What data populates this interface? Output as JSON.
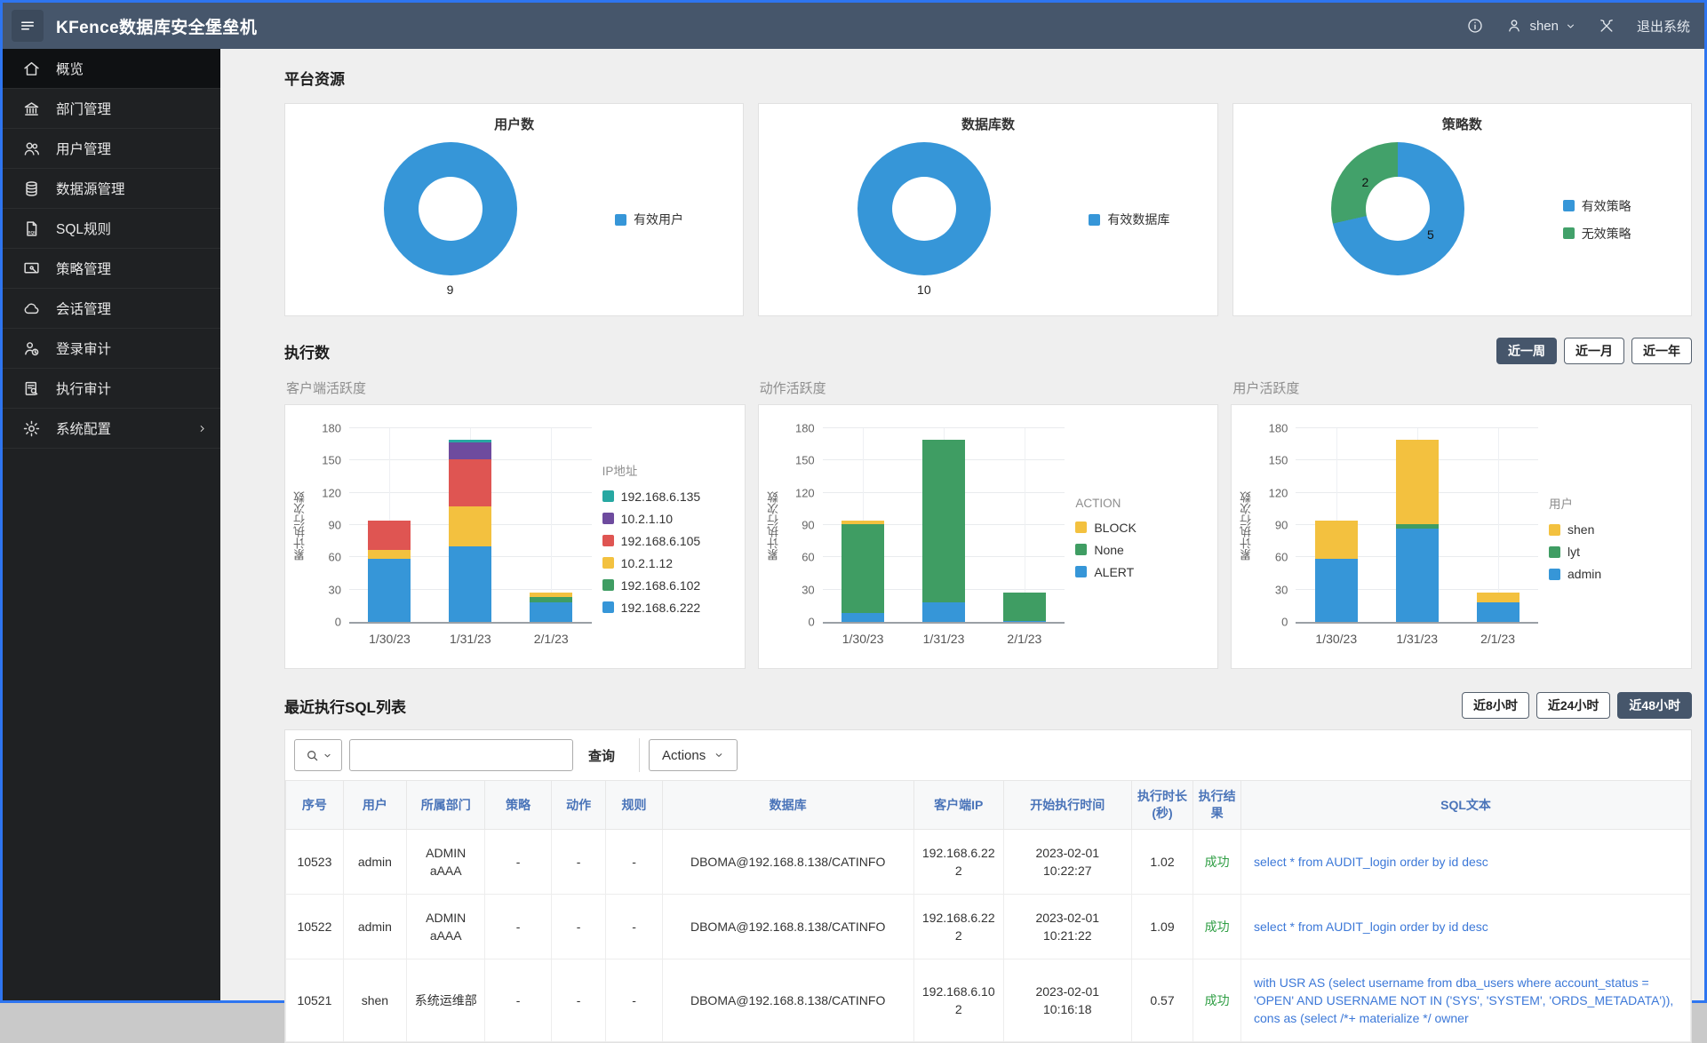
{
  "header": {
    "title": "KFence数据库安全堡垒机",
    "user": "shen",
    "logout": "退出系统"
  },
  "sidebar": {
    "items": [
      {
        "id": "overview",
        "icon": "home",
        "label": "概览",
        "active": true
      },
      {
        "id": "departments",
        "icon": "bank",
        "label": "部门管理"
      },
      {
        "id": "users",
        "icon": "users",
        "label": "用户管理"
      },
      {
        "id": "datasources",
        "icon": "database",
        "label": "数据源管理"
      },
      {
        "id": "sql-rules",
        "icon": "sql-file",
        "label": "SQL规则"
      },
      {
        "id": "policies",
        "icon": "policy",
        "label": "策略管理"
      },
      {
        "id": "sessions",
        "icon": "cloud",
        "label": "会话管理"
      },
      {
        "id": "login-audit",
        "icon": "login-audit",
        "label": "登录审计"
      },
      {
        "id": "exec-audit",
        "icon": "exec-audit",
        "label": "执行审计"
      },
      {
        "id": "system-config",
        "icon": "gear",
        "label": "系统配置",
        "chevron": true
      }
    ]
  },
  "platform": {
    "title": "平台资源",
    "card_refs": [
      0,
      1,
      2
    ]
  },
  "execution": {
    "title": "执行数",
    "filters": [
      {
        "label": "近一周",
        "active": true
      },
      {
        "label": "近一月",
        "active": false
      },
      {
        "label": "近一年",
        "active": false
      }
    ],
    "chart_refs": [
      3,
      4,
      5
    ]
  },
  "sql_list": {
    "title": "最近执行SQL列表",
    "filters": [
      {
        "label": "近8小时",
        "active": false
      },
      {
        "label": "近24小时",
        "active": false
      },
      {
        "label": "近48小时",
        "active": true
      }
    ],
    "search_value": "",
    "query_label": "查询",
    "actions_label": "Actions",
    "table": {
      "headers": [
        "序号",
        "用户",
        "所属部门",
        "策略",
        "动作",
        "规则",
        "数据库",
        "客户端IP",
        "开始执行时间",
        "执行时长(秒)",
        "执行结果",
        "SQL文本"
      ],
      "rows": [
        [
          "10523",
          "admin",
          "ADMIN aAAA",
          "-",
          "-",
          "-",
          "DBOMA@192.168.8.138/CATINFO",
          "192.168.6.222",
          "2023-02-01 10:22:27",
          "1.02",
          "成功",
          "select * from AUDIT_login order by id desc"
        ],
        [
          "10522",
          "admin",
          "ADMIN aAAA",
          "-",
          "-",
          "-",
          "DBOMA@192.168.8.138/CATINFO",
          "192.168.6.222",
          "2023-02-01 10:21:22",
          "1.09",
          "成功",
          "select * from AUDIT_login order by id desc"
        ],
        [
          "10521",
          "shen",
          "系统运维部",
          "-",
          "-",
          "-",
          "DBOMA@192.168.8.138/CATINFO",
          "192.168.6.102",
          "2023-02-01 10:16:18",
          "0.57",
          "成功",
          "with USR AS (select username from dba_users where account_status = 'OPEN' AND USERNAME NOT IN ('SYS', 'SYSTEM', 'ORDS_METADATA')), cons as (select /*+ materialize */ owner"
        ]
      ]
    }
  },
  "colors": {
    "accent_dark": "#46566B",
    "page_border": "#2E75F0",
    "blue": "#3696D8",
    "green": "#3F9D63",
    "yellow": "#F3C13F",
    "red": "#DF5552",
    "purple": "#6E4B9E",
    "teal": "#27A8A2",
    "success_text": "#2F9E44",
    "link_text": "#3C78D8",
    "table_header_text": "#4A74B9"
  },
  "chart_data": [
    {
      "type": "pie",
      "donut": true,
      "title": "用户数",
      "show_value_below": true,
      "slices": [
        {
          "label": "有效用户",
          "value": 9,
          "color": "#3696D8"
        }
      ]
    },
    {
      "type": "pie",
      "donut": true,
      "title": "数据库数",
      "show_value_below": true,
      "slices": [
        {
          "label": "有效数据库",
          "value": 10,
          "color": "#3696D8"
        }
      ]
    },
    {
      "type": "pie",
      "donut": true,
      "title": "策略数",
      "show_value_below": false,
      "slices": [
        {
          "label": "有效策略",
          "value": 5,
          "color": "#3696D8"
        },
        {
          "label": "无效策略",
          "value": 2,
          "color": "#42A16A"
        }
      ]
    },
    {
      "type": "bar",
      "stacked": true,
      "title": "客户端活跃度",
      "legend_title": "IP地址",
      "ylabel": "累计执行次数",
      "ylim": [
        0,
        180
      ],
      "ytick_step": 30,
      "grid": true,
      "legend_position": "right",
      "categories": [
        "1/30/23",
        "1/31/23",
        "2/1/23"
      ],
      "series": [
        {
          "name": "192.168.6.222",
          "color": "#3696D8",
          "values": [
            59,
            70,
            18
          ]
        },
        {
          "name": "192.168.6.102",
          "color": "#3F9D63",
          "values": [
            0,
            0,
            5
          ]
        },
        {
          "name": "10.2.1.12",
          "color": "#F3C13F",
          "values": [
            8,
            37,
            4
          ]
        },
        {
          "name": "192.168.6.105",
          "color": "#DF5552",
          "values": [
            27,
            44,
            0
          ]
        },
        {
          "name": "10.2.1.10",
          "color": "#6E4B9E",
          "values": [
            0,
            16,
            0
          ]
        },
        {
          "name": "192.168.6.135",
          "color": "#27A8A2",
          "values": [
            0,
            2,
            0
          ]
        }
      ]
    },
    {
      "type": "bar",
      "stacked": true,
      "title": "动作活跃度",
      "legend_title": "ACTION",
      "ylabel": "累计执行次数",
      "ylim": [
        0,
        180
      ],
      "ytick_step": 30,
      "grid": true,
      "legend_position": "right",
      "categories": [
        "1/30/23",
        "1/31/23",
        "2/1/23"
      ],
      "series": [
        {
          "name": "ALERT",
          "color": "#3696D8",
          "values": [
            8,
            18,
            1
          ]
        },
        {
          "name": "None",
          "color": "#3F9D63",
          "values": [
            83,
            151,
            26
          ]
        },
        {
          "name": "BLOCK",
          "color": "#F3C13F",
          "values": [
            3,
            0,
            0
          ]
        }
      ]
    },
    {
      "type": "bar",
      "stacked": true,
      "title": "用户活跃度",
      "legend_title": "用户",
      "ylabel": "累计执行次数",
      "ylim": [
        0,
        180
      ],
      "ytick_step": 30,
      "grid": true,
      "legend_position": "right",
      "categories": [
        "1/30/23",
        "1/31/23",
        "2/1/23"
      ],
      "series": [
        {
          "name": "admin",
          "color": "#3696D8",
          "values": [
            59,
            87,
            18
          ]
        },
        {
          "name": "lyt",
          "color": "#3F9D63",
          "values": [
            0,
            4,
            0
          ]
        },
        {
          "name": "shen",
          "color": "#F3C13F",
          "values": [
            35,
            78,
            9
          ]
        }
      ]
    }
  ]
}
